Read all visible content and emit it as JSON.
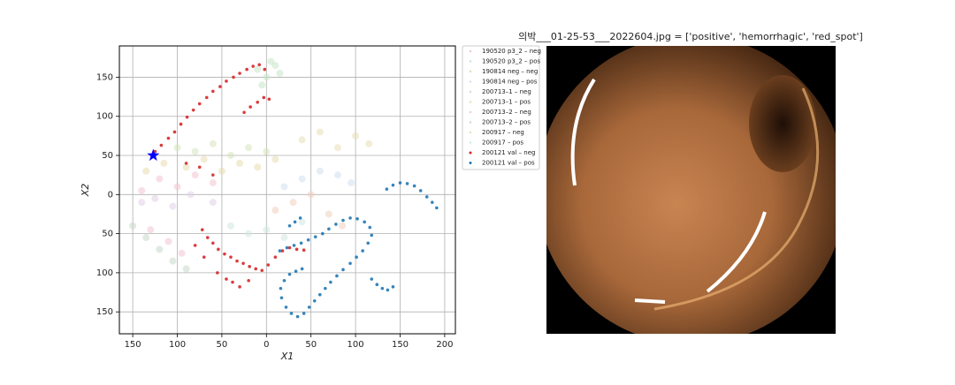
{
  "chart_data": {
    "type": "scatter",
    "title": "의박___01-25-53___2022604.jpg = ['positive', 'hemorrhagic', 'red_spot']",
    "x_label": "X1",
    "y_label": "X2",
    "xlim": [
      -165,
      212
    ],
    "ylim": [
      -178,
      190
    ],
    "xticks": [
      {
        "value": -150,
        "label": "150"
      },
      {
        "value": -100,
        "label": "100"
      },
      {
        "value": -50,
        "label": "50"
      },
      0,
      50,
      100,
      150,
      200
    ],
    "yticks": [
      {
        "value": -150,
        "label": "150"
      },
      {
        "value": -100,
        "label": "100"
      },
      {
        "value": -50,
        "label": "50"
      },
      0,
      50,
      100,
      150
    ],
    "grid": true,
    "legend": "outside right",
    "highlight": {
      "x": -127,
      "y": 50,
      "color": "#0000ff"
    },
    "series": [
      {
        "name": "190520 p3_2 – neg",
        "color": "#f2c4d2",
        "x": [
          -140,
          -120,
          -100,
          -80,
          -60,
          -130,
          -110,
          -95
        ],
        "y": [
          5,
          20,
          10,
          25,
          15,
          -45,
          -60,
          -75
        ]
      },
      {
        "name": "190520 p3_2 – pos",
        "color": "#c6e6c6",
        "x": [
          -10,
          0,
          10,
          -5,
          15,
          5
        ],
        "y": [
          160,
          150,
          165,
          140,
          155,
          170
        ]
      },
      {
        "name": "190814 neg – neg",
        "color": "#e6dcae",
        "x": [
          -135,
          -115,
          -90,
          -70,
          -50,
          -30,
          -10,
          10
        ],
        "y": [
          30,
          40,
          35,
          45,
          30,
          40,
          35,
          45
        ]
      },
      {
        "name": "190814 neg – pos",
        "color": "#cfe0ee",
        "x": [
          20,
          40,
          60,
          80,
          95
        ],
        "y": [
          10,
          20,
          30,
          25,
          15
        ]
      },
      {
        "name": "200713–1 – neg",
        "color": "#e2cfe8",
        "x": [
          -140,
          -125,
          -105,
          -85,
          -60
        ],
        "y": [
          -10,
          -5,
          -15,
          0,
          -10
        ]
      },
      {
        "name": "200713–1 – pos",
        "color": "#d6e4bc",
        "x": [
          -100,
          -80,
          -60,
          -40,
          -20,
          0
        ],
        "y": [
          60,
          55,
          65,
          50,
          60,
          55
        ]
      },
      {
        "name": "200713–2 – neg",
        "color": "#f0cfbf",
        "x": [
          10,
          30,
          50,
          70,
          85
        ],
        "y": [
          -20,
          -10,
          0,
          -25,
          -40
        ]
      },
      {
        "name": "200713–2 – pos",
        "color": "#c8d9c8",
        "x": [
          -150,
          -135,
          -120,
          -105,
          -90
        ],
        "y": [
          -40,
          -55,
          -70,
          -85,
          -95
        ]
      },
      {
        "name": "200917 – neg",
        "color": "#e8dfb6",
        "x": [
          40,
          60,
          80,
          100,
          115
        ],
        "y": [
          70,
          80,
          60,
          75,
          65
        ]
      },
      {
        "name": "200917 – pos",
        "color": "#d0e8e0",
        "x": [
          -40,
          -20,
          0,
          20,
          40
        ],
        "y": [
          -40,
          -50,
          -45,
          -55,
          -35
        ]
      },
      {
        "name": "200121 val – neg",
        "color": "#d62728",
        "x": [
          -125,
          -118,
          -110,
          -103,
          -96,
          -89,
          -82,
          -75,
          -67,
          -60,
          -52,
          -45,
          -37,
          -30,
          -22,
          -15,
          -8,
          -2,
          -25,
          -18,
          -10,
          -3,
          3,
          -90,
          -75,
          -60,
          -72,
          -66,
          -60,
          -54,
          -47,
          -40,
          -33,
          -26,
          -19,
          -12,
          -5,
          2,
          10,
          18,
          26,
          34,
          42,
          -55,
          -45,
          -38,
          -30,
          -80,
          -70,
          -20
        ],
        "y": [
          55,
          63,
          72,
          80,
          90,
          99,
          108,
          116,
          124,
          132,
          138,
          145,
          150,
          155,
          160,
          164,
          166,
          160,
          105,
          112,
          118,
          124,
          122,
          40,
          35,
          25,
          -45,
          -55,
          -62,
          -70,
          -76,
          -80,
          -85,
          -88,
          -92,
          -95,
          -97,
          -90,
          -80,
          -72,
          -68,
          -70,
          -71,
          -100,
          -108,
          -112,
          -118,
          -65,
          -80,
          -110
        ]
      },
      {
        "name": "200121 val – pos",
        "color": "#1f77b4",
        "x": [
          135,
          142,
          150,
          158,
          166,
          173,
          180,
          186,
          191,
          15,
          23,
          31,
          39,
          47,
          55,
          63,
          70,
          78,
          86,
          94,
          102,
          110,
          116,
          118,
          114,
          108,
          101,
          94,
          86,
          79,
          72,
          66,
          60,
          54,
          48,
          42,
          35,
          28,
          22,
          17,
          16,
          20,
          26,
          33,
          40,
          118,
          124,
          130,
          136,
          142,
          26,
          32,
          38
        ],
        "y": [
          7,
          12,
          15,
          14,
          11,
          5,
          -3,
          -10,
          -17,
          -72,
          -68,
          -65,
          -62,
          -58,
          -54,
          -50,
          -44,
          -38,
          -33,
          -30,
          -31,
          -35,
          -42,
          -52,
          -62,
          -72,
          -80,
          -88,
          -96,
          -104,
          -112,
          -120,
          -128,
          -136,
          -144,
          -152,
          -156,
          -152,
          -144,
          -132,
          -120,
          -110,
          -102,
          -98,
          -95,
          -108,
          -115,
          -120,
          -122,
          -118,
          -40,
          -35,
          -30
        ]
      }
    ]
  }
}
